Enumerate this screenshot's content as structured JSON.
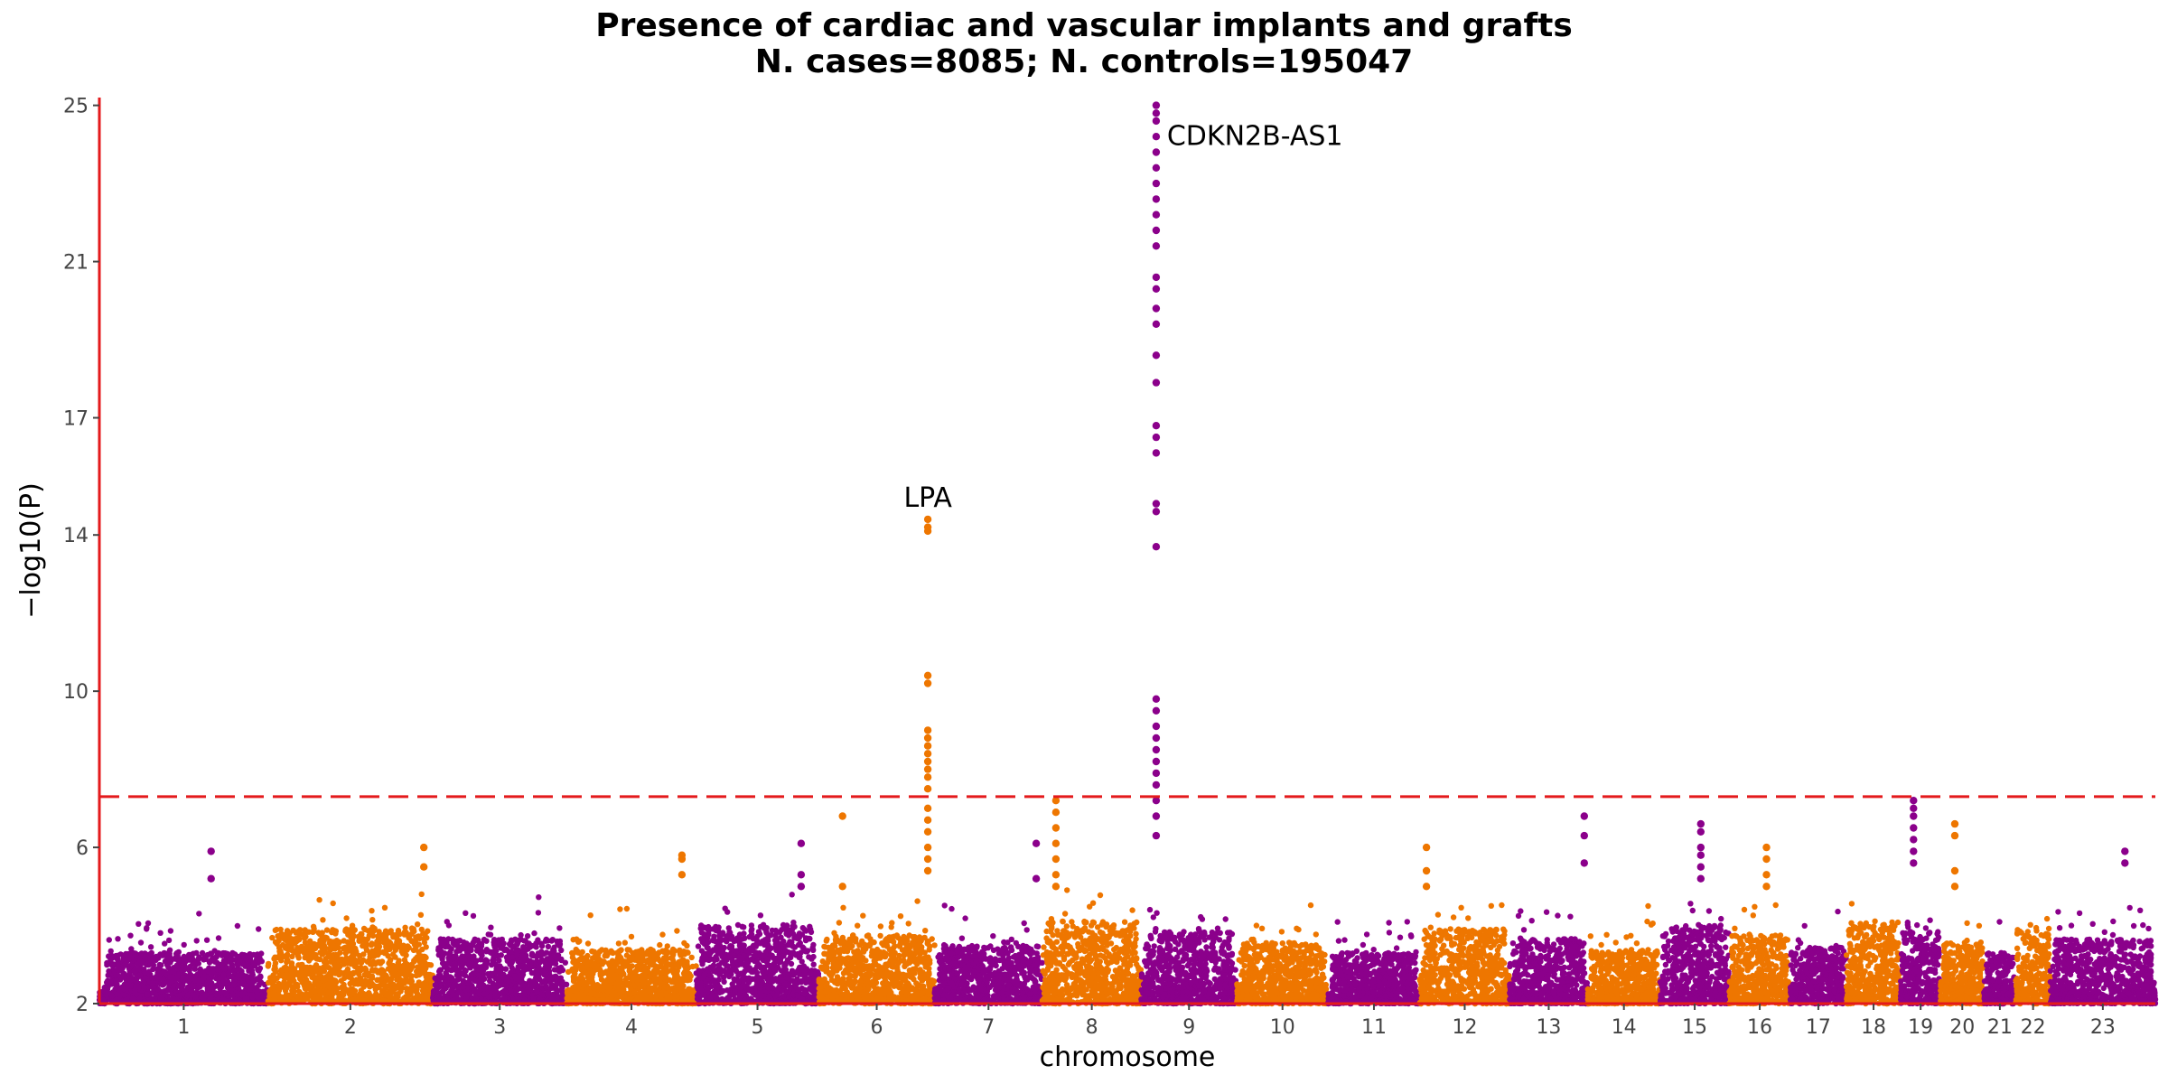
{
  "chart_data": {
    "type": "scatter",
    "subtype": "manhattan",
    "title": "Presence of cardiac and vascular implants and grafts",
    "subtitle": "N. cases=8085; N. controls=195047",
    "xlabel": "chromosome",
    "ylabel": "−log10(P)",
    "ylim": [
      2,
      25.2
    ],
    "yticks": [
      2,
      6,
      10,
      14,
      17,
      21,
      25
    ],
    "grid": false,
    "legend": "none",
    "significance_line": {
      "y": 7.3,
      "style": "dashed",
      "color": "#e41a1c"
    },
    "colors": {
      "odd": "#8b008b",
      "even": "#ee7600",
      "axis": "#e41a1c"
    },
    "chromosomes": [
      {
        "label": "1",
        "length": 249
      },
      {
        "label": "2",
        "length": 243
      },
      {
        "label": "3",
        "length": 198
      },
      {
        "label": "4",
        "length": 191
      },
      {
        "label": "5",
        "length": 181
      },
      {
        "label": "6",
        "length": 171
      },
      {
        "label": "7",
        "length": 159
      },
      {
        "label": "8",
        "length": 146
      },
      {
        "label": "9",
        "length": 141
      },
      {
        "label": "10",
        "length": 135
      },
      {
        "label": "11",
        "length": 135
      },
      {
        "label": "12",
        "length": 133
      },
      {
        "label": "13",
        "length": 115
      },
      {
        "label": "14",
        "length": 107
      },
      {
        "label": "15",
        "length": 102
      },
      {
        "label": "16",
        "length": 90
      },
      {
        "label": "17",
        "length": 83
      },
      {
        "label": "18",
        "length": 80
      },
      {
        "label": "19",
        "length": 59
      },
      {
        "label": "20",
        "length": 64
      },
      {
        "label": "21",
        "length": 47
      },
      {
        "label": "22",
        "length": 51
      },
      {
        "label": "23",
        "length": 155
      }
    ],
    "peaks": [
      {
        "chr": "6",
        "pos": 161,
        "label": "LPA",
        "values": [
          14.4,
          14.2,
          14.1,
          10.4,
          10.2,
          9.0,
          8.8,
          8.6,
          8.4,
          8.2,
          8.0,
          7.8,
          7.5,
          7.0,
          6.7,
          6.4,
          6.0,
          5.7,
          5.4
        ]
      },
      {
        "chr": "9",
        "pos": 22,
        "label": "CDKN2B-AS1",
        "values": [
          25.0,
          24.8,
          24.6,
          24.2,
          23.8,
          23.4,
          23.0,
          22.6,
          22.2,
          21.8,
          21.4,
          20.6,
          20.3,
          19.8,
          19.4,
          18.6,
          17.9,
          16.8,
          16.5,
          16.1,
          14.8,
          14.6,
          13.7,
          9.8,
          9.5,
          9.1,
          8.8,
          8.5,
          8.2,
          7.9,
          7.6,
          7.2,
          6.8,
          6.3
        ]
      },
      {
        "chr": "8",
        "pos": 20,
        "values": [
          7.2,
          6.9,
          6.5,
          6.1,
          5.7,
          5.3,
          5.0
        ]
      },
      {
        "chr": "19",
        "pos": 19,
        "values": [
          7.2,
          7.0,
          6.8,
          6.5,
          6.2,
          5.9,
          5.6
        ]
      },
      {
        "chr": "15",
        "pos": 60,
        "values": [
          6.6,
          6.4,
          6.0,
          5.8,
          5.5,
          5.2
        ]
      },
      {
        "chr": "20",
        "pos": 21,
        "values": [
          6.6,
          6.3,
          5.4,
          5.0
        ]
      },
      {
        "chr": "16",
        "pos": 55,
        "values": [
          6.0,
          5.7,
          5.3,
          5.0
        ]
      },
      {
        "chr": "13",
        "pos": 110,
        "values": [
          6.8,
          6.3,
          5.6
        ]
      },
      {
        "chr": "12",
        "pos": 10,
        "values": [
          6.0,
          5.4,
          5.0
        ]
      },
      {
        "chr": "5",
        "pos": 155,
        "values": [
          6.1,
          5.3,
          5.0
        ]
      },
      {
        "chr": "7",
        "pos": 150,
        "values": [
          6.1,
          5.2
        ]
      },
      {
        "chr": "6",
        "pos": 35,
        "values": [
          6.8,
          5.0
        ]
      },
      {
        "chr": "4",
        "pos": 170,
        "values": [
          5.8,
          5.7,
          5.3
        ]
      },
      {
        "chr": "2",
        "pos": 230,
        "values": [
          6.0,
          5.5
        ]
      },
      {
        "chr": "1",
        "pos": 165,
        "values": [
          5.9,
          5.2
        ]
      },
      {
        "chr": "23",
        "pos": 110,
        "values": [
          5.9,
          5.6
        ]
      }
    ],
    "annotations": [
      {
        "text": "LPA",
        "chr": "6",
        "pos": 161,
        "y": 14.4,
        "side": "above"
      },
      {
        "text": "CDKN2B-AS1",
        "chr": "9",
        "pos": 22,
        "y": 25.0,
        "side": "right"
      }
    ]
  }
}
